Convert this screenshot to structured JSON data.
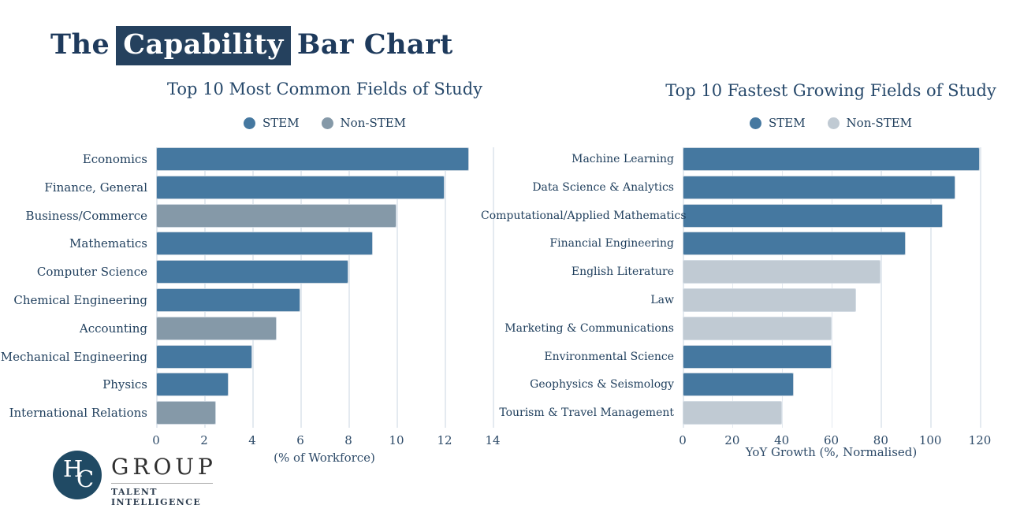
{
  "page_title": {
    "text_before": "The",
    "highlight": "Capability",
    "text_after": "Bar Chart"
  },
  "colors": {
    "navy_text": "#1e3a5c",
    "highlight_bg": "#25415e",
    "stem": "#4578a0",
    "non_stem_common": "#8599a8",
    "non_stem_growing": "#c0cad3",
    "gridline": "#e4eaf0",
    "logo_circle": "#204a64"
  },
  "chart_data": [
    {
      "type": "bar",
      "orientation": "horizontal",
      "title": "Top 10 Most Common Fields of Study",
      "xlabel": "(% of Workforce)",
      "xlim": [
        0,
        14
      ],
      "xticks": [
        0,
        2,
        4,
        6,
        8,
        10,
        12,
        14
      ],
      "grid": true,
      "legend_position": "top-center",
      "legend": [
        {
          "label": "STEM",
          "color": "#4578a0"
        },
        {
          "label": "Non-STEM",
          "color": "#8599a8"
        }
      ],
      "categories": [
        "Economics",
        "Finance, General",
        "Business/Commerce",
        "Mathematics",
        "Computer Science",
        "Chemical Engineering",
        "Accounting",
        "Mechanical Engineering",
        "Physics",
        "International Relations"
      ],
      "values": [
        13,
        12,
        10,
        9,
        8,
        6,
        5,
        4,
        3,
        2.5
      ],
      "groups": [
        "STEM",
        "STEM",
        "Non-STEM",
        "STEM",
        "STEM",
        "STEM",
        "Non-STEM",
        "STEM",
        "STEM",
        "Non-STEM"
      ]
    },
    {
      "type": "bar",
      "orientation": "horizontal",
      "title": "Top 10 Fastest Growing Fields of Study",
      "xlabel": "YoY Growth (%, Normalised)",
      "xlim": [
        0,
        120
      ],
      "xticks": [
        0,
        20,
        40,
        60,
        80,
        100,
        120
      ],
      "grid": true,
      "legend_position": "top-center",
      "legend": [
        {
          "label": "STEM",
          "color": "#4578a0"
        },
        {
          "label": "Non-STEM",
          "color": "#c0cad3"
        }
      ],
      "categories": [
        "Machine Learning",
        "Data Science & Analytics",
        "Computational/Applied Mathematics",
        "Financial Engineering",
        "English Literature",
        "Law",
        "Marketing & Communications",
        "Environmental Science",
        "Geophysics & Seismology",
        "Tourism & Travel Management"
      ],
      "values": [
        120,
        110,
        105,
        90,
        80,
        70,
        60,
        60,
        45,
        40
      ],
      "groups": [
        "STEM",
        "STEM",
        "STEM",
        "STEM",
        "Non-STEM",
        "Non-STEM",
        "Non-STEM",
        "STEM",
        "STEM",
        "Non-STEM"
      ]
    }
  ],
  "logo": {
    "monogram": "HC",
    "name": "GROUP",
    "tagline": "TALENT INTELLIGENCE"
  }
}
